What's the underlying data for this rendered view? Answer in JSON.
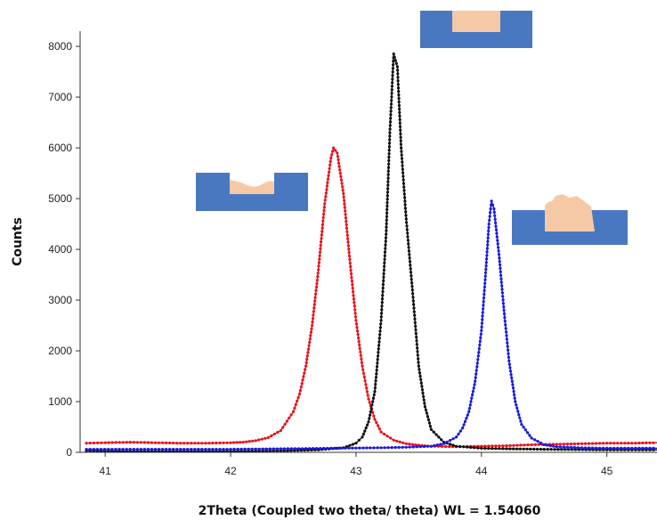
{
  "chart_data": {
    "type": "line",
    "title": "",
    "xlabel": "2Theta (Coupled two theta/ theta) WL = 1.54060",
    "ylabel": "Counts",
    "xlim": [
      40.8,
      45.4
    ],
    "ylim": [
      0,
      8300
    ],
    "x_ticks": [
      41,
      42,
      43,
      44,
      45
    ],
    "y_ticks": [
      0,
      1000,
      2000,
      3000,
      4000,
      5000,
      6000,
      7000,
      8000
    ],
    "grid": false,
    "series": [
      {
        "color": "#e8141c",
        "marker": "dot",
        "peak": {
          "x": 42.82,
          "y": 6000
        },
        "width_fwhm": 0.22,
        "points": [
          [
            40.85,
            180
          ],
          [
            41.0,
            190
          ],
          [
            41.2,
            200
          ],
          [
            41.4,
            190
          ],
          [
            41.6,
            180
          ],
          [
            41.8,
            180
          ],
          [
            42.0,
            190
          ],
          [
            42.1,
            200
          ],
          [
            42.2,
            230
          ],
          [
            42.3,
            290
          ],
          [
            42.4,
            430
          ],
          [
            42.5,
            800
          ],
          [
            42.55,
            1150
          ],
          [
            42.6,
            1700
          ],
          [
            42.65,
            2500
          ],
          [
            42.7,
            3600
          ],
          [
            42.75,
            4900
          ],
          [
            42.8,
            5800
          ],
          [
            42.82,
            6000
          ],
          [
            42.85,
            5900
          ],
          [
            42.9,
            5100
          ],
          [
            42.95,
            3800
          ],
          [
            43.0,
            2600
          ],
          [
            43.05,
            1700
          ],
          [
            43.1,
            1050
          ],
          [
            43.15,
            650
          ],
          [
            43.2,
            400
          ],
          [
            43.3,
            240
          ],
          [
            43.4,
            170
          ],
          [
            43.5,
            140
          ],
          [
            43.6,
            120
          ],
          [
            43.8,
            110
          ],
          [
            44.0,
            120
          ],
          [
            44.2,
            130
          ],
          [
            44.4,
            150
          ],
          [
            44.6,
            160
          ],
          [
            44.8,
            170
          ],
          [
            45.0,
            180
          ],
          [
            45.2,
            180
          ],
          [
            45.4,
            190
          ]
        ]
      },
      {
        "color": "#111111",
        "marker": "dot",
        "peak": {
          "x": 43.3,
          "y": 7850
        },
        "width_fwhm": 0.18,
        "points": [
          [
            40.85,
            30
          ],
          [
            41.2,
            20
          ],
          [
            41.6,
            20
          ],
          [
            42.0,
            20
          ],
          [
            42.4,
            30
          ],
          [
            42.7,
            50
          ],
          [
            42.9,
            90
          ],
          [
            43.0,
            180
          ],
          [
            43.05,
            300
          ],
          [
            43.1,
            600
          ],
          [
            43.15,
            1200
          ],
          [
            43.2,
            2600
          ],
          [
            43.24,
            4300
          ],
          [
            43.27,
            6300
          ],
          [
            43.3,
            7850
          ],
          [
            43.33,
            7600
          ],
          [
            43.36,
            6000
          ],
          [
            43.4,
            4600
          ],
          [
            43.45,
            3200
          ],
          [
            43.5,
            1700
          ],
          [
            43.55,
            900
          ],
          [
            43.6,
            450
          ],
          [
            43.7,
            200
          ],
          [
            43.8,
            120
          ],
          [
            44.0,
            80
          ],
          [
            44.2,
            70
          ],
          [
            44.5,
            60
          ],
          [
            45.0,
            50
          ],
          [
            45.4,
            50
          ]
        ]
      },
      {
        "color": "#1a1ae0",
        "marker": "dot",
        "peak": {
          "x": 44.08,
          "y": 4950
        },
        "width_fwhm": 0.24,
        "points": [
          [
            40.85,
            60
          ],
          [
            41.2,
            60
          ],
          [
            41.6,
            60
          ],
          [
            42.0,
            60
          ],
          [
            42.4,
            70
          ],
          [
            42.8,
            80
          ],
          [
            43.2,
            90
          ],
          [
            43.4,
            100
          ],
          [
            43.6,
            120
          ],
          [
            43.7,
            170
          ],
          [
            43.8,
            300
          ],
          [
            43.85,
            480
          ],
          [
            43.9,
            800
          ],
          [
            43.95,
            1400
          ],
          [
            44.0,
            2400
          ],
          [
            44.03,
            3400
          ],
          [
            44.06,
            4500
          ],
          [
            44.08,
            4950
          ],
          [
            44.1,
            4800
          ],
          [
            44.14,
            3900
          ],
          [
            44.18,
            2800
          ],
          [
            44.22,
            1800
          ],
          [
            44.27,
            1000
          ],
          [
            44.32,
            550
          ],
          [
            44.4,
            280
          ],
          [
            44.5,
            150
          ],
          [
            44.6,
            110
          ],
          [
            44.8,
            90
          ],
          [
            45.0,
            80
          ],
          [
            45.4,
            80
          ]
        ]
      }
    ],
    "insets": [
      {
        "id": "inset-recessed",
        "description_shape": "recess-with-shallow-deposit",
        "anchor_series": 0,
        "base_color": "#4a78c0",
        "deposit_color": "#f6c9a6"
      },
      {
        "id": "inset-filled",
        "description_shape": "recess-filled-flush",
        "anchor_series": 1,
        "base_color": "#4a78c0",
        "deposit_color": "#f6c9a6"
      },
      {
        "id": "inset-overfilled",
        "description_shape": "deposit-protruding",
        "anchor_series": 2,
        "base_color": "#4a78c0",
        "deposit_color": "#f6c9a6"
      }
    ]
  }
}
